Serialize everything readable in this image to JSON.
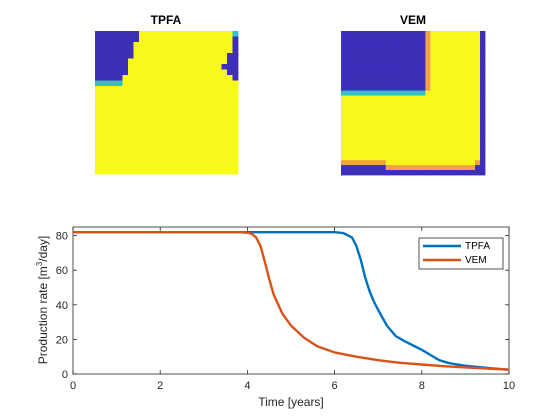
{
  "colors": {
    "low": "#3d2fb8",
    "high": "#f8f81a",
    "cyan_edge": "#2fc0c8",
    "orange_edge": "#f0a248",
    "tpfa": "#0072bd",
    "vem": "#d95319"
  },
  "maps": [
    {
      "title": "TPFA",
      "field_rows_top_to_bottom": [
        "LLLLLLLLHHHHHHHHHHHHHHHHHC",
        "LLLLLLLLHHHHHHHHHHHHHHHHHL",
        "LLLLLLLHHHHHHHHHHHHHHHHHHL",
        "LLLLLLLHHHHHHHHHHHHHHHHHHL",
        "LLLLLLLHHHHHHHHHHHHHHHHHLL",
        "LLLLLLHHHHHHHHHHHHHHHHHHLL",
        "LLLLLLHHHHHHHHHHHHHHHHHLLL",
        "LLLLLLHHHHHHHHHHHHHHHHHHLL",
        "LLLLLHHHHHHHHHHHHHHHHHHHHL",
        "CCCCCHHHHHHHHHHHHHHHHHHHHH",
        "HHHHHHHHHHHHHHHHHHHHHHHHHH",
        "HHHHHHHHHHHHHHHHHHHHHHHHHH",
        "HHHHHHHHHHHHHHHHHHHHHHHHHH",
        "HHHHHHHHHHHHHHHHHHHHHHHHHH",
        "HHHHHHHHHHHHHHHHHHHHHHHHHH",
        "HHHHHHHHHHHHHHHHHHHHHHHHHH",
        "HHHHHHHHHHHHHHHHHHHHHHHHHH",
        "HHHHHHHHHHHHHHHHHHHHHHHHHH",
        "HHHHHHHHHHHHHHHHHHHHHHHHHH",
        "HHHHHHHHHHHHHHHHHHHHHHHHHH",
        "HHHHHHHHHHHHHHHHHHHHHHHHHH",
        "HHHHHHHHHHHHHHHHHHHHHHHHHH",
        "HHHHHHHHHHHHHHHHHHHHHHHHHH",
        "HHHHHHHHHHHHHHHHHHHHHHHHHH",
        "HHHHHHHHHHHHHHHHHHHHHHHHHH",
        "HHHHHHHHHHHHHHHHHHHHHHHHHH"
      ]
    },
    {
      "title": "VEM",
      "field_rows_top_to_bottom": [
        "LLLLLLLLLLLLLLLLLOHHHHHHHHHHL",
        "LLLLLLLLLLLLLLLLLOHHHHHHHHHHL",
        "LLLLLLLLLLLLLLLLLOHHHHHHHHHHL",
        "LLLLLLLLLLLLLLLLLOHHHHHHHHHHL",
        "LLLLLLLLLLLLLLLLLOHHHHHHHHHHL",
        "LLLLLLLLLLLLLLLLLOHHHHHHHHHHL",
        "LLLLLLLLLLLLLLLLLOHHHHHHHHHHL",
        "LLLLLLLLLLLLLLLLLOHHHHHHHHHHL",
        "LLLLLLLLLLLLLLLLLOHHHHHHHHHHL",
        "LLLLLLLLLLLLLLLLLOHHHHHHHHHHL",
        "LLLLLLLLLLLLLLLLLOHHHHHHHHHHL",
        "LLLLLLLLLLLLLLLLLOHHHHHHHHHHL",
        "CCCCCCCCCCCCCCCCCHHHHHHHHHHHL",
        "HHHHHHHHHHHHHHHHHHHHHHHHHHHHL",
        "HHHHHHHHHHHHHHHHHHHHHHHHHHHHL",
        "HHHHHHHHHHHHHHHHHHHHHHHHHHHHL",
        "HHHHHHHHHHHHHHHHHHHHHHHHHHHHL",
        "HHHHHHHHHHHHHHHHHHHHHHHHHHHHL",
        "HHHHHHHHHHHHHHHHHHHHHHHHHHHHL",
        "HHHHHHHHHHHHHHHHHHHHHHHHHHHHL",
        "HHHHHHHHHHHHHHHHHHHHHHHHHHHHL",
        "HHHHHHHHHHHHHHHHHHHHHHHHHHHHL",
        "HHHHHHHHHHHHHHHHHHHHHHHHHHHHL",
        "HHHHHHHHHHHHHHHHHHHHHHHHHHHHL",
        "HHHHHHHHHHHHHHHHHHHHHHHHHHHHL",
        "HHHHHHHHHHHHHHHHHHHHHHHHHHHHL",
        "OOOOOOOOOHHHHHHHHHHHHHHHHHHOL",
        "LLLLLLLLLOOOOOOOOOOOOOOOOOOLL",
        "LLLLLLLLLLLLLLLLLLLLLLLLLLLLL"
      ]
    }
  ],
  "chart_data": {
    "type": "line",
    "title": "",
    "xlabel": "Time [years]",
    "ylabel_parts": [
      "Production rate [m",
      "3",
      "/day]"
    ],
    "xlim": [
      0,
      10
    ],
    "ylim": [
      0,
      85
    ],
    "xticks": [
      "0",
      "2",
      "4",
      "6",
      "8",
      "10"
    ],
    "yticks": [
      "0",
      "20",
      "40",
      "60",
      "80"
    ],
    "legend_position": "top-right",
    "grid": false,
    "series": [
      {
        "name": "TPFA",
        "x": [
          0,
          1,
          2,
          3,
          4,
          5,
          6,
          6.2,
          6.4,
          6.5,
          6.6,
          6.7,
          6.8,
          6.9,
          7.0,
          7.2,
          7.4,
          7.6,
          7.8,
          8.0,
          8.2,
          8.4,
          8.6,
          8.8,
          9.0,
          9.3,
          9.6,
          10
        ],
        "y": [
          82,
          82,
          82,
          82,
          82,
          82,
          82,
          81.5,
          79,
          74,
          66,
          56,
          48,
          42,
          37,
          28,
          22,
          19,
          16.5,
          14,
          11,
          8,
          6.5,
          5.5,
          4.8,
          4,
          3.3,
          2.5
        ]
      },
      {
        "name": "VEM",
        "x": [
          0,
          1,
          2,
          3,
          3.8,
          4.0,
          4.1,
          4.2,
          4.3,
          4.4,
          4.5,
          4.6,
          4.8,
          5.0,
          5.3,
          5.6,
          6.0,
          6.5,
          7.0,
          7.5,
          8.0,
          8.5,
          9.0,
          9.5,
          10
        ],
        "y": [
          82,
          82,
          82,
          82,
          82,
          81.7,
          81,
          79,
          74,
          65,
          55,
          46,
          35,
          28,
          21,
          16,
          12.5,
          10,
          8,
          6.5,
          5.5,
          4.5,
          3.8,
          3.2,
          2.5
        ]
      }
    ]
  }
}
